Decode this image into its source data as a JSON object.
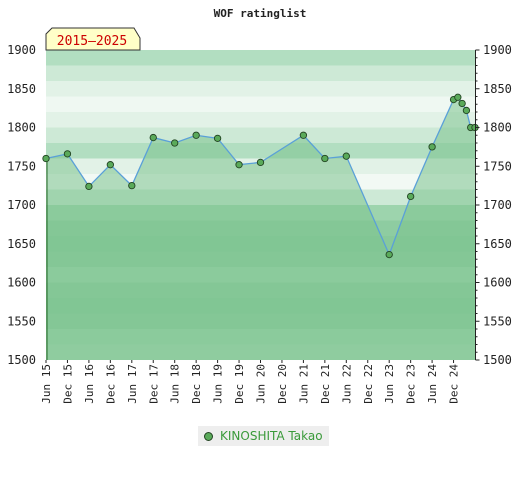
{
  "chart_data": {
    "type": "line",
    "title": "WOF ratinglist",
    "period_badge": "2015–2025",
    "xlabel": "",
    "ylabel": "",
    "ylim": [
      1500,
      1900
    ],
    "yticks": [
      1500,
      1550,
      1600,
      1650,
      1700,
      1750,
      1800,
      1850,
      1900
    ],
    "xticks": [
      "Jun 15",
      "Dec 15",
      "Jun 16",
      "Dec 16",
      "Jun 17",
      "Dec 17",
      "Jun 18",
      "Dec 18",
      "Jun 19",
      "Dec 19",
      "Jun 20",
      "Dec 20",
      "Jun 21",
      "Dec 21",
      "Jun 22",
      "Dec 22",
      "Jun 23",
      "Dec 23",
      "Jun 24",
      "Dec 24"
    ],
    "grid": true,
    "legend_position": "bottom-center",
    "colors": {
      "line": "#5aa0d8",
      "area": "#7cc28e",
      "marker": "#5aaa5a",
      "marker_edge": "#224422",
      "legend_text": "#3a9a3a",
      "badge_bg": "#ffffc8"
    },
    "bands": [
      {
        "from": 1880,
        "to": 1900,
        "color": "#b2dec1"
      },
      {
        "from": 1860,
        "to": 1880,
        "color": "#cde9d6"
      },
      {
        "from": 1840,
        "to": 1860,
        "color": "#e2f2e7"
      },
      {
        "from": 1820,
        "to": 1840,
        "color": "#eff8f2"
      },
      {
        "from": 1800,
        "to": 1820,
        "color": "#e2f2e7"
      },
      {
        "from": 1780,
        "to": 1800,
        "color": "#cde9d6"
      },
      {
        "from": 1760,
        "to": 1780,
        "color": "#b2dec1"
      },
      {
        "from": 1740,
        "to": 1760,
        "color": "#e2f2e7"
      },
      {
        "from": 1720,
        "to": 1740,
        "color": "#f2f9f4"
      },
      {
        "from": 1700,
        "to": 1720,
        "color": "#cde9d6"
      },
      {
        "from": 1680,
        "to": 1700,
        "color": "#9dd4ad"
      },
      {
        "from": 1660,
        "to": 1680,
        "color": "#8ecca1"
      },
      {
        "from": 1640,
        "to": 1660,
        "color": "#88c99b"
      },
      {
        "from": 1620,
        "to": 1640,
        "color": "#8ecca1"
      },
      {
        "from": 1600,
        "to": 1620,
        "color": "#9dd4ad"
      },
      {
        "from": 1580,
        "to": 1600,
        "color": "#8ecca1"
      },
      {
        "from": 1560,
        "to": 1580,
        "color": "#88c99b"
      },
      {
        "from": 1540,
        "to": 1560,
        "color": "#8ecca1"
      },
      {
        "from": 1520,
        "to": 1540,
        "color": "#9dd4ad"
      },
      {
        "from": 1500,
        "to": 1520,
        "color": "#a6d8b4"
      }
    ],
    "series": [
      {
        "name": "KINOSHITA Takao",
        "points": [
          {
            "x": 0.0,
            "y": 1760
          },
          {
            "x": 1.0,
            "y": 1766
          },
          {
            "x": 2.0,
            "y": 1724
          },
          {
            "x": 3.0,
            "y": 1752
          },
          {
            "x": 4.0,
            "y": 1725
          },
          {
            "x": 5.0,
            "y": 1787
          },
          {
            "x": 6.0,
            "y": 1780
          },
          {
            "x": 7.0,
            "y": 1790
          },
          {
            "x": 8.0,
            "y": 1786
          },
          {
            "x": 9.0,
            "y": 1752
          },
          {
            "x": 10.0,
            "y": 1755
          },
          {
            "x": 12.0,
            "y": 1790
          },
          {
            "x": 13.0,
            "y": 1760
          },
          {
            "x": 14.0,
            "y": 1763
          },
          {
            "x": 16.0,
            "y": 1636
          },
          {
            "x": 17.0,
            "y": 1711
          },
          {
            "x": 18.0,
            "y": 1775
          },
          {
            "x": 19.0,
            "y": 1836
          },
          {
            "x": 19.2,
            "y": 1839
          },
          {
            "x": 19.4,
            "y": 1831
          },
          {
            "x": 19.6,
            "y": 1822
          },
          {
            "x": 19.8,
            "y": 1800
          },
          {
            "x": 20.0,
            "y": 1800
          }
        ]
      }
    ]
  }
}
